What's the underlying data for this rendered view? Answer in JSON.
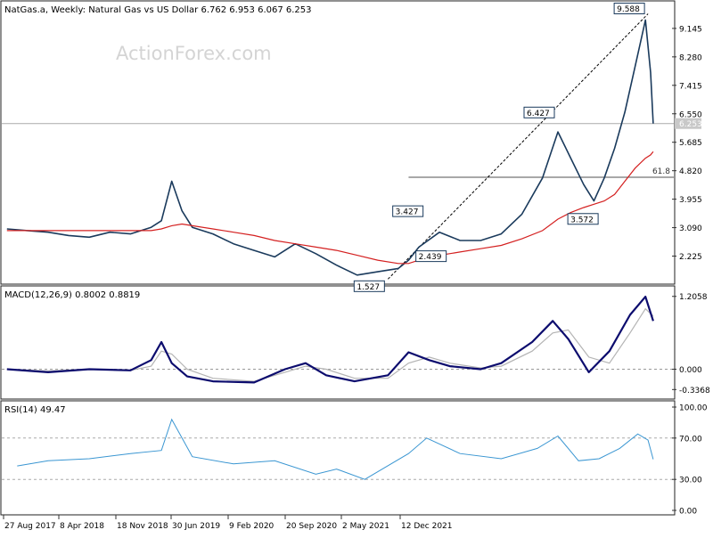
{
  "watermark": "ActionForex.com",
  "colors": {
    "price": "#1a3a5c",
    "ma": "#d42020",
    "macd": "#0c0c6e",
    "signal": "#b4b4b4",
    "rsi": "#3a96d2",
    "frame": "#222222",
    "level_line": "#505050",
    "watermark": "#d4d4d4"
  },
  "chart_data": [
    {
      "type": "line",
      "panel": "price",
      "title": "NatGas.a, Weekly:  Natural Gas vs US Dollar  6.762 6.953 6.067 6.253",
      "y_ticks": [
        "9.145",
        "8.280",
        "7.415",
        "6.550",
        "5.685",
        "4.820",
        "3.955",
        "3.090",
        "2.225"
      ],
      "ylim": [
        1.4,
        9.9
      ],
      "last_price_label": "6.253",
      "last_price": 6.253,
      "x": [
        "2017-08-27",
        "2017-10-22",
        "2017-12-17",
        "2018-02-11",
        "2018-04-08",
        "2018-06-03",
        "2018-07-29",
        "2018-09-23",
        "2018-10-21",
        "2018-11-18",
        "2018-12-16",
        "2019-01-13",
        "2019-03-10",
        "2019-05-05",
        "2019-06-30",
        "2019-08-25",
        "2019-10-20",
        "2019-12-15",
        "2020-02-09",
        "2020-04-05",
        "2020-05-31",
        "2020-07-26",
        "2020-08-23",
        "2020-09-20",
        "2020-11-15",
        "2021-01-10",
        "2021-03-07",
        "2021-05-02",
        "2021-06-27",
        "2021-08-22",
        "2021-10-03",
        "2021-11-07",
        "2021-12-12",
        "2022-01-09",
        "2022-02-06",
        "2022-03-06",
        "2022-04-03",
        "2022-05-01",
        "2022-05-29",
        "2022-06-12",
        "2022-06-19"
      ],
      "series": [
        {
          "name": "",
          "values": [
            3.05,
            3.0,
            2.95,
            2.85,
            2.8,
            2.95,
            2.9,
            3.1,
            3.3,
            4.5,
            3.6,
            3.1,
            2.9,
            2.6,
            2.4,
            2.2,
            2.6,
            2.3,
            1.95,
            1.65,
            1.75,
            1.85,
            2.1,
            2.5,
            2.95,
            2.7,
            2.7,
            2.9,
            3.5,
            4.6,
            6.0,
            5.2,
            4.4,
            3.9,
            4.6,
            5.5,
            6.6,
            8.0,
            9.4,
            7.8,
            6.253
          ]
        },
        {
          "name": "",
          "values": [
            3.0,
            3.0,
            3.0,
            3.0,
            3.0,
            3.0,
            3.0,
            3.0,
            3.05,
            3.15,
            3.2,
            3.15,
            3.05,
            2.95,
            2.85,
            2.7,
            2.6,
            2.5,
            2.4,
            2.25,
            2.1,
            2.0,
            2.0,
            2.1,
            2.25,
            2.35,
            2.45,
            2.55,
            2.75,
            3.0,
            3.35,
            3.55,
            3.7,
            3.8,
            3.9,
            4.1,
            4.5,
            4.9,
            5.2,
            5.3,
            5.4
          ]
        }
      ],
      "annotations": [
        {
          "label": "9.588",
          "x": "2022-06-05",
          "y": 9.588
        },
        {
          "label": "6.427",
          "x": "2021-10-03",
          "y": 6.427
        },
        {
          "label": "3.427",
          "x": "2020-10-11",
          "y": 3.427
        },
        {
          "label": "3.572",
          "x": "2022-01-30",
          "y": 3.572
        },
        {
          "label": "2.439",
          "x": "2020-12-13",
          "y": 2.439
        },
        {
          "label": "1.527",
          "x": "2020-06-28",
          "y": 1.527
        }
      ],
      "trendline": {
        "from": {
          "x": "2020-06-28",
          "y": 1.527
        },
        "to": {
          "x": "2022-06-05",
          "y": 9.588
        }
      },
      "level": {
        "label": "61.8",
        "y": 4.62,
        "x_start": "2020-08-23"
      }
    },
    {
      "type": "line",
      "panel": "macd",
      "title": "MACD(12,26,9) 0.8002 0.8819",
      "y_ticks": [
        "1.2058",
        "0.000",
        "-0.3368"
      ],
      "ylim": [
        -0.45,
        1.32
      ],
      "zero_line": true,
      "x": [
        "2017-08-27",
        "2017-12-17",
        "2018-04-08",
        "2018-07-29",
        "2018-09-23",
        "2018-10-21",
        "2018-11-18",
        "2018-12-30",
        "2019-03-10",
        "2019-06-30",
        "2019-09-22",
        "2019-11-17",
        "2020-01-12",
        "2020-03-29",
        "2020-06-28",
        "2020-08-23",
        "2020-10-18",
        "2020-12-13",
        "2021-03-07",
        "2021-05-02",
        "2021-07-25",
        "2021-09-19",
        "2021-10-31",
        "2021-12-26",
        "2022-02-20",
        "2022-04-17",
        "2022-05-29",
        "2022-06-19"
      ],
      "series": [
        {
          "name": "",
          "values": [
            0.0,
            -0.05,
            0.0,
            -0.02,
            0.15,
            0.45,
            0.1,
            -0.12,
            -0.2,
            -0.22,
            0.0,
            0.1,
            -0.1,
            -0.2,
            -0.1,
            0.28,
            0.15,
            0.05,
            0.0,
            0.1,
            0.45,
            0.8,
            0.5,
            -0.05,
            0.3,
            0.9,
            1.2,
            0.8
          ]
        },
        {
          "name": "",
          "values": [
            0.0,
            -0.03,
            0.0,
            -0.02,
            0.05,
            0.3,
            0.25,
            0.0,
            -0.15,
            -0.2,
            -0.05,
            0.05,
            0.0,
            -0.15,
            -0.15,
            0.1,
            0.2,
            0.1,
            0.02,
            0.05,
            0.3,
            0.6,
            0.65,
            0.2,
            0.1,
            0.6,
            1.0,
            0.88
          ]
        }
      ]
    },
    {
      "type": "line",
      "panel": "rsi",
      "title": "RSI(14) 49.47",
      "y_ticks": [
        "100.00",
        "70.00",
        "30.00",
        "0.00"
      ],
      "ylim": [
        0,
        100
      ],
      "levels": [
        70,
        30
      ],
      "x": [
        "2017-09-24",
        "2017-12-17",
        "2018-04-08",
        "2018-07-29",
        "2018-10-21",
        "2018-11-18",
        "2019-01-13",
        "2019-05-05",
        "2019-08-25",
        "2019-12-15",
        "2020-02-09",
        "2020-04-26",
        "2020-08-23",
        "2020-10-11",
        "2021-01-10",
        "2021-05-02",
        "2021-08-08",
        "2021-10-03",
        "2021-11-28",
        "2022-01-23",
        "2022-03-20",
        "2022-05-08",
        "2022-06-05",
        "2022-06-19"
      ],
      "series": [
        {
          "name": "",
          "values": [
            43,
            48,
            50,
            55,
            58,
            88,
            52,
            45,
            48,
            35,
            40,
            30,
            55,
            70,
            55,
            50,
            60,
            72,
            48,
            50,
            60,
            74,
            68,
            49.47
          ]
        }
      ]
    }
  ],
  "x_axis": {
    "ticks": [
      "27 Aug 2017",
      "8 Apr 2018",
      "18 Nov 2018",
      "30 Jun 2019",
      "9 Feb 2020",
      "20 Sep 2020",
      "2 May 2021",
      "12 Dec 2021"
    ]
  }
}
